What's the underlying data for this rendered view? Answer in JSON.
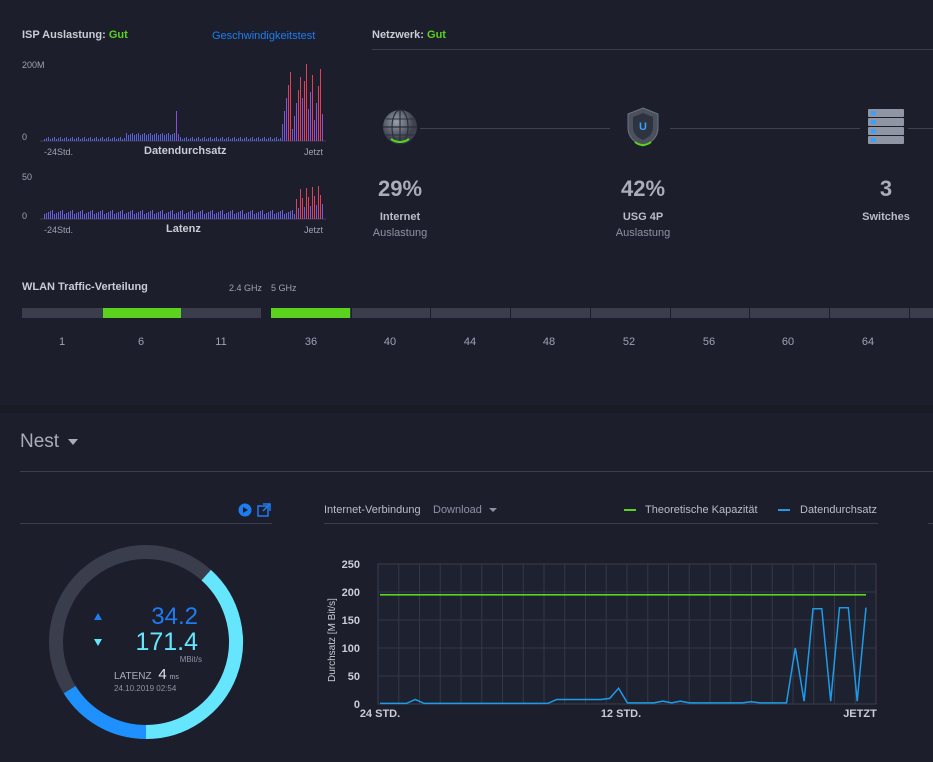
{
  "isp": {
    "title": "ISP Auslastung:",
    "status": "Gut",
    "speedtest_link": "Geschwindigkeitstest",
    "throughput": {
      "y_max": "200M",
      "y_min": "0",
      "x_start": "-24Std.",
      "x_end": "Jetzt",
      "label": "Datendurchsatz"
    },
    "latency": {
      "y_max": "50",
      "y_min": "0",
      "x_start": "-24Std.",
      "x_end": "Jetzt",
      "label": "Latenz"
    }
  },
  "network": {
    "title": "Netzwerk:",
    "status": "Gut",
    "nodes": [
      {
        "value": "29%",
        "label": "Internet",
        "sub": "Auslastung",
        "icon": "globe-icon"
      },
      {
        "value": "42%",
        "label": "USG 4P",
        "sub": "Auslastung",
        "icon": "shield-icon"
      },
      {
        "value": "3",
        "label": "Switches",
        "sub": "",
        "icon": "switch-stack-icon"
      }
    ]
  },
  "wlan": {
    "title": "WLAN Traffic-Verteilung",
    "band24": "2.4 GHz",
    "band5": "5 GHz",
    "channels24": [
      "1",
      "6",
      "11"
    ],
    "channels5": [
      "36",
      "40",
      "44",
      "48",
      "52",
      "56",
      "60",
      "64"
    ]
  },
  "site": {
    "name": "Nest"
  },
  "gauge": {
    "upload": "34.2",
    "download": "171.4",
    "unit": "MBit/s",
    "latency_label": "LATENZ",
    "latency_value": "4",
    "latency_unit": "ms",
    "timestamp": "24.10.2019 02:54"
  },
  "internet_chart": {
    "title": "Internet-Verbindung",
    "mode": "Download",
    "legend": {
      "capacity": "Theoretische Kapazität",
      "throughput": "Datendurchsatz"
    }
  },
  "colors": {
    "green": "#5ad21e",
    "blue": "#1e7cf2",
    "cyan": "#66e5ff",
    "line_blue": "#1e9be8"
  },
  "chart_data": {
    "type": "line",
    "ylabel": "Durchsatz [M Bit/s]",
    "ylim": [
      0,
      250
    ],
    "yticks": [
      "250",
      "200",
      "150",
      "100",
      "50",
      "0"
    ],
    "xticks": [
      "24 STD.",
      "12 STD.",
      "JETZT"
    ],
    "series": [
      {
        "name": "Theoretische Kapazität",
        "values": [
          195,
          195
        ]
      },
      {
        "name": "Datendurchsatz",
        "values": [
          1,
          1,
          1,
          1,
          8,
          1,
          1,
          1,
          1,
          1,
          1,
          1,
          1,
          1,
          1,
          1,
          1,
          1,
          1,
          1,
          8,
          8,
          8,
          8,
          8,
          8,
          10,
          28,
          2,
          2,
          2,
          2,
          5,
          2,
          5,
          2,
          2,
          2,
          2,
          2,
          2,
          2,
          4,
          2,
          2,
          2,
          2,
          100,
          5,
          170,
          170,
          5,
          172,
          172,
          5,
          172
        ]
      }
    ]
  }
}
